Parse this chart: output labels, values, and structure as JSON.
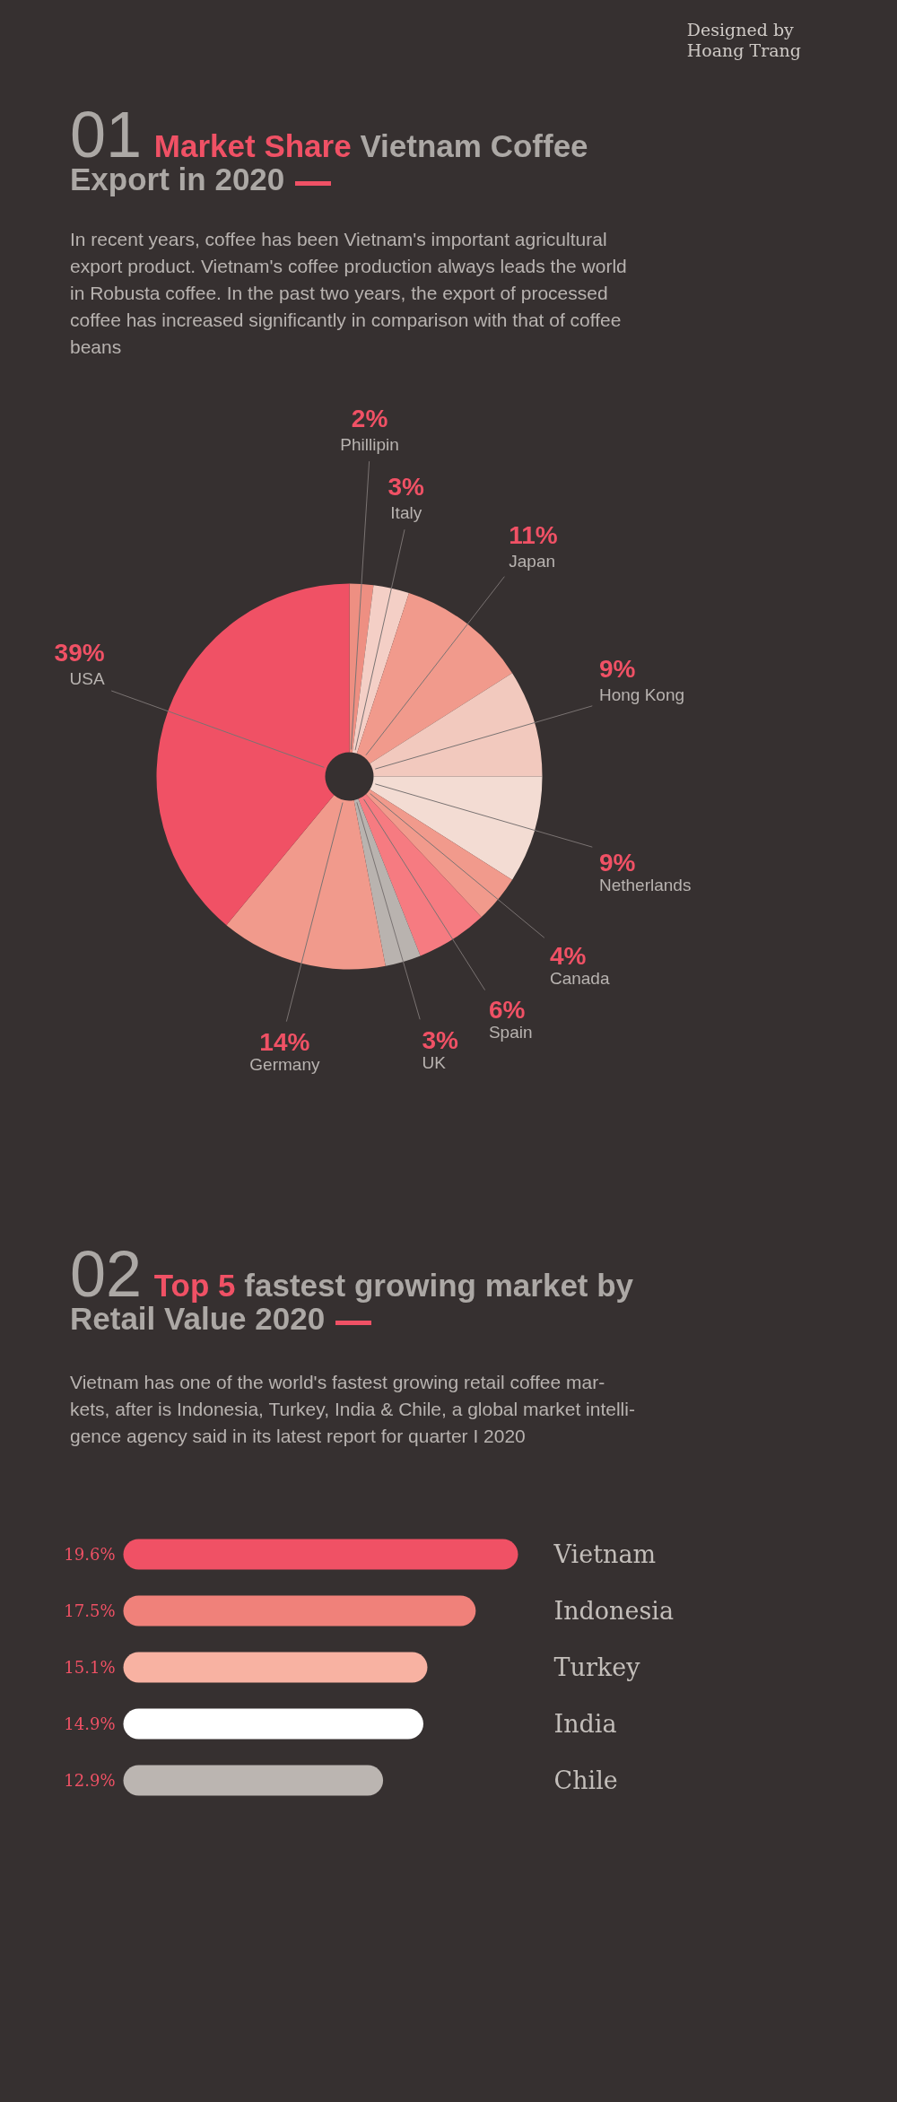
{
  "chart_data": [
    {
      "type": "donut",
      "title": "01 Market Share Vietnam Coffee\nExport in 2020",
      "subtitle": "In recent years, coffee has been Vietnam's important agricultural\nexport product. Vietnam's coffee production always leads the world\nin Robusta coffee. In the past two years, the export of processed\ncoffee has increased significantly in comparison with that of coffee\nbeans",
      "annotations": [
        "Designed by\nHoang Trang"
      ],
      "categories": [
        "Phillipin",
        "Italy",
        "Japan",
        "Hong Kong",
        "Netherlands",
        "Canada",
        "Spain",
        "UK",
        "Germany",
        "USA"
      ],
      "values": [
        2,
        3,
        11,
        9,
        9,
        4,
        6,
        3,
        14,
        39
      ],
      "colors": [
        "#ee8f82",
        "#f4cfc6",
        "#f19a8c",
        "#f2c9be",
        "#f3dcd3",
        "#f19a8c",
        "#f67b81",
        "#b9b3af",
        "#f19a8c",
        "#f05165"
      ],
      "value_labels": [
        "2%",
        "3%",
        "11%",
        "9%",
        "9%",
        "4%",
        "6%",
        "3%",
        "14%",
        "39%"
      ]
    },
    {
      "type": "bar",
      "orientation": "horizontal",
      "title": "02 Top 5 fastest growing market by\nRetail Value 2020",
      "subtitle": "Vietnam has one of the world's fastest growing retail coffee mar-\nkets, after is Indonesia, Turkey, India & Chile, a global market intelli-\ngence agency said in its latest report for quarter I 2020",
      "categories": [
        "Vietnam",
        "Indonesia",
        "Turkey",
        "India",
        "Chile"
      ],
      "values": [
        19.6,
        17.5,
        15.1,
        14.9,
        12.9
      ],
      "colors": [
        "#f05165",
        "#f0817a",
        "#f8b2a2",
        "#ffffff",
        "#bbb5b1"
      ],
      "value_labels": [
        "19.6%",
        "17.5%",
        "15.1%",
        "14.9%",
        "12.9%"
      ]
    }
  ]
}
